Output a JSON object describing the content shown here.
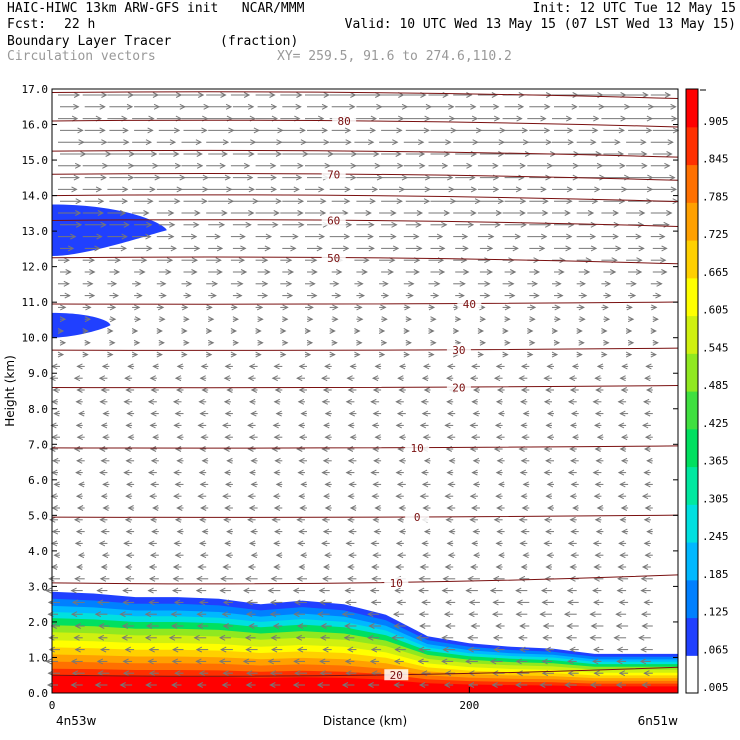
{
  "header": {
    "line1_left": "HAIC-HIWC 13km ARW-GFS init   NCAR/MMM",
    "line1_right": "Init: 12 UTC Tue 12 May 15",
    "fcst_label": "Fcst:",
    "fcst_value": "22 h",
    "valid": "Valid: 10 UTC Wed 13 May 15 (07 LST Wed 13 May 15)",
    "field1_name": "Boundary Layer Tracer",
    "field1_units": "(fraction)",
    "field2_name": "Circulation vectors",
    "xy": "XY= 259.5, 91.6 to 274.6,110.2"
  },
  "chart_data": {
    "type": "heatmap",
    "xlabel": "Distance (km)",
    "ylabel": "Height (km)",
    "xlim": [
      0,
      300
    ],
    "ylim": [
      0,
      17
    ],
    "x_ticks": [
      {
        "v": 0,
        "label": "0"
      },
      {
        "v": 200,
        "label": "200"
      }
    ],
    "x_end_labels": {
      "left": "4n53w",
      "right": "6n51w"
    },
    "y_ticks": [
      "0.0",
      "1.0",
      "2.0",
      "3.0",
      "4.0",
      "5.0",
      "6.0",
      "7.0",
      "8.0",
      "9.0",
      "10.0",
      "11.0",
      "12.0",
      "13.0",
      "14.0",
      "15.0",
      "16.0",
      "17.0"
    ],
    "colorbar": {
      "labels": [
        ".005",
        ".065",
        ".125",
        ".185",
        ".245",
        ".305",
        ".365",
        ".425",
        ".485",
        ".545",
        ".605",
        ".665",
        ".725",
        ".785",
        ".845",
        ".905"
      ],
      "colors": [
        "#ffffff",
        "#2040ff",
        "#0080ff",
        "#00b8ff",
        "#00e0e0",
        "#00e8a0",
        "#00e060",
        "#40e040",
        "#90e820",
        "#d0f010",
        "#ffff00",
        "#ffd000",
        "#ffa000",
        "#ff7000",
        "#ff3000",
        "#ff0000"
      ]
    },
    "temperature_contours": [
      {
        "label": "20",
        "height_km": 0.5,
        "label_x": 165
      },
      {
        "label": "10",
        "height_km": 3.1,
        "label_x": 165
      },
      {
        "label": "0",
        "height_km": 4.95,
        "label_x": 175
      },
      {
        "label": "10",
        "height_km": 6.9,
        "label_x": 175
      },
      {
        "label": "20",
        "height_km": 8.6,
        "label_x": 195
      },
      {
        "label": "30",
        "height_km": 9.65,
        "label_x": 195
      },
      {
        "label": "40",
        "height_km": 10.95,
        "label_x": 200
      },
      {
        "label": "50",
        "height_km": 12.25,
        "label_x": 135
      },
      {
        "label": "60",
        "height_km": 13.3,
        "label_x": 135
      },
      {
        "label": "70",
        "height_km": 14.6,
        "label_x": 135
      },
      {
        "label": "80",
        "height_km": 16.1,
        "label_x": 140
      },
      {
        "label": "",
        "height_km": 14.0,
        "label_x": 0
      },
      {
        "label": "",
        "height_km": 15.25,
        "label_x": 0
      },
      {
        "label": "",
        "height_km": 16.9,
        "label_x": 245
      }
    ],
    "tracer_field": {
      "surface_layer_top_km": [
        2.85,
        2.8,
        2.7,
        2.7,
        2.65,
        2.5,
        2.6,
        2.5,
        2.2,
        1.6,
        1.4,
        1.3,
        1.25,
        1.1,
        1.1,
        1.1
      ],
      "plume_layers": [
        {
          "x_range": [
            0,
            55
          ],
          "height_range": [
            12.3,
            13.75
          ]
        },
        {
          "x_range": [
            0,
            28
          ],
          "height_range": [
            10.0,
            10.7
          ]
        }
      ]
    }
  }
}
